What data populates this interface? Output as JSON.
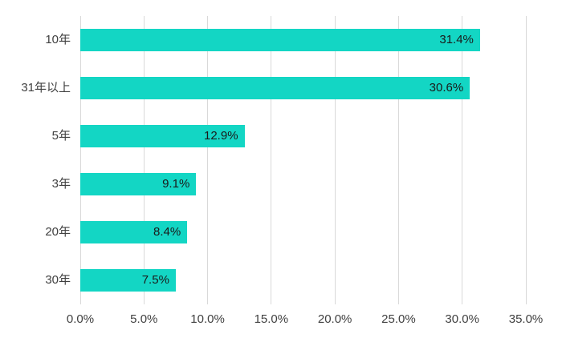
{
  "chart_data": {
    "type": "bar",
    "orientation": "horizontal",
    "categories": [
      "10年",
      "31年以上",
      "5年",
      "3年",
      "20年",
      "30年"
    ],
    "values": [
      31.4,
      30.6,
      12.9,
      9.1,
      8.4,
      7.5
    ],
    "value_labels": [
      "31.4%",
      "30.6%",
      "12.9%",
      "9.1%",
      "8.4%",
      "7.5%"
    ],
    "x_ticks": [
      {
        "value": 0,
        "label": "0.0%"
      },
      {
        "value": 5,
        "label": "5.0%"
      },
      {
        "value": 10,
        "label": "10.0%"
      },
      {
        "value": 15,
        "label": "15.0%"
      },
      {
        "value": 20,
        "label": "20.0%"
      },
      {
        "value": 25,
        "label": "25.0%"
      },
      {
        "value": 30,
        "label": "30.0%"
      },
      {
        "value": 35,
        "label": "35.0%"
      }
    ],
    "xlim": [
      0,
      35
    ],
    "grid": true,
    "legend": "none",
    "colors": {
      "bar": "#13d6c4",
      "value_label_text": "#1a1a1a",
      "axis_text": "#404040",
      "gridline": "#d9d9d9",
      "background": "#ffffff"
    }
  }
}
